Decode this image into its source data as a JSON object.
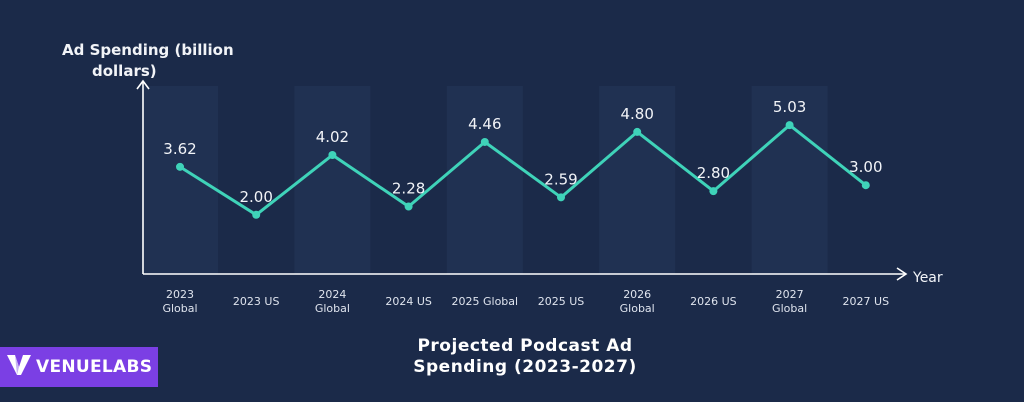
{
  "chart_data": {
    "type": "line",
    "title": "Projected Podcast Ad Spending (2023-2027)",
    "title_lines": [
      "Projected Podcast Ad",
      "Spending (2023-2027)"
    ],
    "ylabel_lines": [
      "Ad Spending (billion",
      "dollars)"
    ],
    "xlabel": "Year",
    "categories": [
      [
        "2023",
        "Global"
      ],
      [
        "2023 US"
      ],
      [
        "2024",
        "Global"
      ],
      [
        "2024 US"
      ],
      [
        "2025 Global"
      ],
      [
        "2025 US"
      ],
      [
        "2026",
        "Global"
      ],
      [
        "2026 US"
      ],
      [
        "2027",
        "Global"
      ],
      [
        "2027 US"
      ]
    ],
    "values": [
      3.62,
      2.0,
      4.02,
      2.28,
      4.46,
      2.59,
      4.8,
      2.8,
      5.03,
      3.0
    ],
    "value_labels": [
      "3.62",
      "2.00",
      "4.02",
      "2.28",
      "4.46",
      "2.59",
      "4.80",
      "2.80",
      "5.03",
      "3.00"
    ],
    "ylim": [
      0,
      6.5
    ],
    "grid": false,
    "legend": "none"
  },
  "colors": {
    "background": "#1b2a49",
    "line": "#3fd3b9",
    "band": "#24365a",
    "logo_bg": "#7b3fe4"
  },
  "logo": {
    "word1": "VENUE",
    "word2": "LABS",
    "icon": "venuelabs-v-icon"
  }
}
